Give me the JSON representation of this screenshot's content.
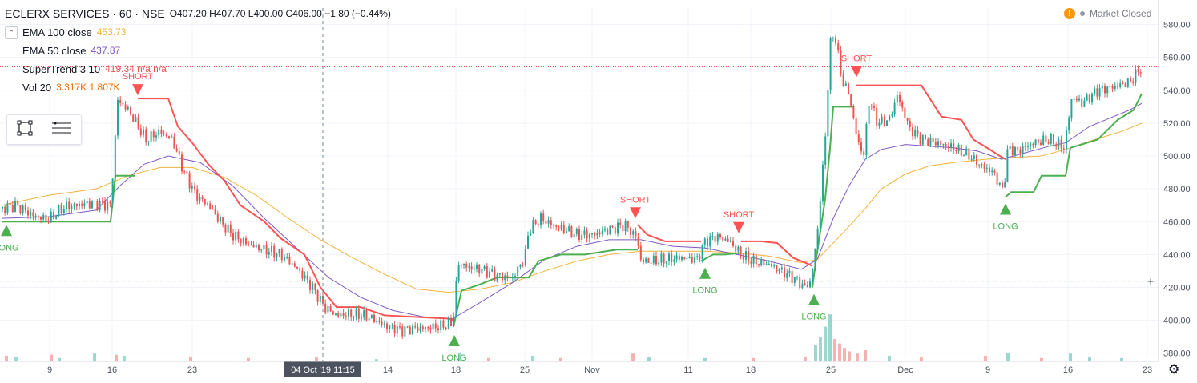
{
  "header": {
    "symbol": "ECLERX SERVICES · 60 · NSE",
    "ohlc": "O407.20  H407.70  L400.00  C406.00  −1.80 (−0.44%)"
  },
  "status": {
    "alert_icon": "!",
    "market_text": "Market Closed"
  },
  "indicators": [
    {
      "name": "EMA 100 close",
      "value": "453.73",
      "color": "#f2b33b"
    },
    {
      "name": "EMA 50 close",
      "value": "437.87",
      "color": "#7e57c2"
    },
    {
      "name": "SuperTrend 3 10",
      "value": "419.34  n/a  n/a",
      "color": "#ef5350"
    },
    {
      "name": "Vol 20",
      "value": "3.317K  1.807K",
      "color": "#ef6c00"
    }
  ],
  "colors": {
    "up": "#26a69a",
    "down": "#ef5350",
    "ema100": "#f2b33b",
    "ema50": "#7e57c2",
    "st_up": "#4caf50",
    "st_down": "#ff5252",
    "grid": "#f0f3fa",
    "axis_text": "#4c525e"
  },
  "crosshair": {
    "time_label": "04 Oct '19  11:15",
    "price_label": "423.80"
  },
  "last_price_label": "554.25",
  "chart_data": {
    "type": "candlestick",
    "ylim": [
      375,
      590
    ],
    "price_ticks": [
      "580.00",
      "560.00",
      "540.00",
      "520.00",
      "500.00",
      "480.00",
      "460.00",
      "440.00",
      "420.00",
      "400.00",
      "380.00"
    ],
    "x_ticks": [
      {
        "label": "9",
        "x": 62
      },
      {
        "label": "16",
        "x": 140
      },
      {
        "label": "23",
        "x": 240
      },
      {
        "label": "14",
        "x": 484
      },
      {
        "label": "18",
        "x": 569
      },
      {
        "label": "25",
        "x": 655
      },
      {
        "label": "Nov",
        "x": 739
      },
      {
        "label": "11",
        "x": 859
      },
      {
        "label": "18",
        "x": 937
      },
      {
        "label": "25",
        "x": 1037
      },
      {
        "label": "Dec",
        "x": 1130
      },
      {
        "label": "9",
        "x": 1233
      },
      {
        "label": "16",
        "x": 1333
      },
      {
        "label": "23",
        "x": 1432
      }
    ],
    "close_path": [
      [
        2,
        468
      ],
      [
        20,
        470
      ],
      [
        40,
        464
      ],
      [
        60,
        461
      ],
      [
        80,
        469
      ],
      [
        110,
        471
      ],
      [
        138,
        470
      ],
      [
        147,
        534
      ],
      [
        160,
        528
      ],
      [
        170,
        520
      ],
      [
        182,
        510
      ],
      [
        200,
        515
      ],
      [
        215,
        510
      ],
      [
        230,
        490
      ],
      [
        245,
        476
      ],
      [
        260,
        470
      ],
      [
        275,
        460
      ],
      [
        290,
        452
      ],
      [
        310,
        446
      ],
      [
        330,
        443
      ],
      [
        350,
        440
      ],
      [
        370,
        432
      ],
      [
        390,
        420
      ],
      [
        405,
        408
      ],
      [
        420,
        403
      ],
      [
        440,
        404
      ],
      [
        460,
        402
      ],
      [
        480,
        397
      ],
      [
        500,
        394
      ],
      [
        520,
        395
      ],
      [
        545,
        396
      ],
      [
        565,
        398
      ],
      [
        572,
        435
      ],
      [
        585,
        432
      ],
      [
        600,
        431
      ],
      [
        620,
        427
      ],
      [
        640,
        426
      ],
      [
        655,
        438
      ],
      [
        660,
        455
      ],
      [
        675,
        462
      ],
      [
        690,
        458
      ],
      [
        705,
        455
      ],
      [
        720,
        452
      ],
      [
        740,
        452
      ],
      [
        760,
        455
      ],
      [
        780,
        458
      ],
      [
        795,
        450
      ],
      [
        800,
        436
      ],
      [
        815,
        436
      ],
      [
        830,
        437
      ],
      [
        850,
        438
      ],
      [
        870,
        437
      ],
      [
        880,
        448
      ],
      [
        895,
        451
      ],
      [
        910,
        448
      ],
      [
        925,
        440
      ],
      [
        940,
        436
      ],
      [
        960,
        434
      ],
      [
        975,
        430
      ],
      [
        990,
        426
      ],
      [
        1005,
        420
      ],
      [
        1012,
        424
      ],
      [
        1020,
        452
      ],
      [
        1030,
        510
      ],
      [
        1036,
        568
      ],
      [
        1042,
        575
      ],
      [
        1050,
        548
      ],
      [
        1060,
        537
      ],
      [
        1070,
        510
      ],
      [
        1078,
        500
      ],
      [
        1085,
        535
      ],
      [
        1095,
        520
      ],
      [
        1110,
        522
      ],
      [
        1120,
        537
      ],
      [
        1135,
        517
      ],
      [
        1150,
        510
      ],
      [
        1170,
        508
      ],
      [
        1190,
        505
      ],
      [
        1210,
        500
      ],
      [
        1225,
        494
      ],
      [
        1240,
        490
      ],
      [
        1252,
        478
      ],
      [
        1258,
        505
      ],
      [
        1270,
        503
      ],
      [
        1290,
        508
      ],
      [
        1310,
        510
      ],
      [
        1328,
        505
      ],
      [
        1338,
        536
      ],
      [
        1350,
        532
      ],
      [
        1370,
        540
      ],
      [
        1390,
        542
      ],
      [
        1410,
        545
      ],
      [
        1425,
        554
      ]
    ],
    "ema50": [
      [
        2,
        462
      ],
      [
        60,
        463
      ],
      [
        120,
        467
      ],
      [
        150,
        482
      ],
      [
        180,
        495
      ],
      [
        210,
        500
      ],
      [
        250,
        496
      ],
      [
        290,
        482
      ],
      [
        330,
        462
      ],
      [
        370,
        444
      ],
      [
        410,
        426
      ],
      [
        450,
        414
      ],
      [
        490,
        406
      ],
      [
        530,
        402
      ],
      [
        565,
        401
      ],
      [
        600,
        411
      ],
      [
        640,
        423
      ],
      [
        680,
        437
      ],
      [
        720,
        445
      ],
      [
        760,
        449
      ],
      [
        800,
        449
      ],
      [
        840,
        445
      ],
      [
        880,
        444
      ],
      [
        920,
        440
      ],
      [
        960,
        436
      ],
      [
        1000,
        431
      ],
      [
        1020,
        437
      ],
      [
        1040,
        462
      ],
      [
        1060,
        482
      ],
      [
        1080,
        498
      ],
      [
        1100,
        504
      ],
      [
        1130,
        507
      ],
      [
        1160,
        506
      ],
      [
        1190,
        505
      ],
      [
        1220,
        503
      ],
      [
        1250,
        498
      ],
      [
        1280,
        502
      ],
      [
        1310,
        506
      ],
      [
        1330,
        508
      ],
      [
        1360,
        518
      ],
      [
        1390,
        524
      ],
      [
        1410,
        528
      ],
      [
        1425,
        532
      ]
    ],
    "ema100": [
      [
        2,
        470
      ],
      [
        60,
        476
      ],
      [
        120,
        480
      ],
      [
        160,
        488
      ],
      [
        200,
        493
      ],
      [
        240,
        493
      ],
      [
        280,
        487
      ],
      [
        320,
        476
      ],
      [
        360,
        462
      ],
      [
        400,
        449
      ],
      [
        440,
        438
      ],
      [
        480,
        428
      ],
      [
        520,
        419
      ],
      [
        560,
        417
      ],
      [
        600,
        419
      ],
      [
        640,
        423
      ],
      [
        680,
        430
      ],
      [
        720,
        436
      ],
      [
        760,
        440
      ],
      [
        800,
        442
      ],
      [
        840,
        442
      ],
      [
        880,
        442
      ],
      [
        920,
        441
      ],
      [
        960,
        439
      ],
      [
        1000,
        435
      ],
      [
        1020,
        437
      ],
      [
        1050,
        452
      ],
      [
        1080,
        468
      ],
      [
        1100,
        480
      ],
      [
        1130,
        489
      ],
      [
        1160,
        494
      ],
      [
        1190,
        496
      ],
      [
        1230,
        498
      ],
      [
        1260,
        499
      ],
      [
        1300,
        500
      ],
      [
        1330,
        504
      ],
      [
        1360,
        509
      ],
      [
        1400,
        515
      ],
      [
        1425,
        520
      ]
    ],
    "st_up_segments": [
      [
        [
          2,
          460
        ],
        [
          138,
          460
        ],
        [
          144,
          488
        ],
        [
          168,
          488
        ]
      ],
      [
        [
          566,
          396
        ],
        [
          576,
          418
        ],
        [
          600,
          422
        ],
        [
          620,
          426
        ],
        [
          660,
          426
        ],
        [
          672,
          436
        ],
        [
          700,
          440
        ],
        [
          730,
          440
        ],
        [
          770,
          443
        ],
        [
          796,
          443
        ]
      ],
      [
        [
          875,
          436
        ],
        [
          890,
          440
        ],
        [
          905,
          440
        ],
        [
          925,
          441
        ]
      ],
      [
        [
          1014,
          420
        ],
        [
          1018,
          435
        ],
        [
          1030,
          474
        ],
        [
          1036,
          505
        ],
        [
          1040,
          530
        ],
        [
          1065,
          530
        ]
      ],
      [
        [
          1255,
          475
        ],
        [
          1262,
          478
        ],
        [
          1290,
          478
        ],
        [
          1300,
          488
        ],
        [
          1330,
          488
        ],
        [
          1336,
          505
        ],
        [
          1370,
          510
        ],
        [
          1395,
          522
        ],
        [
          1415,
          528
        ],
        [
          1425,
          538
        ]
      ]
    ],
    "st_down_segments": [
      [
        [
          172,
          535
        ],
        [
          210,
          535
        ],
        [
          222,
          518
        ],
        [
          240,
          508
        ],
        [
          260,
          495
        ],
        [
          280,
          485
        ],
        [
          300,
          470
        ],
        [
          330,
          460
        ],
        [
          350,
          450
        ],
        [
          380,
          440
        ],
        [
          400,
          420
        ],
        [
          420,
          408
        ],
        [
          450,
          408
        ],
        [
          480,
          403
        ],
        [
          520,
          402
        ],
        [
          560,
          401
        ],
        [
          566,
          400
        ]
      ],
      [
        [
          796,
          458
        ],
        [
          808,
          452
        ],
        [
          830,
          448
        ],
        [
          875,
          448
        ]
      ],
      [
        [
          925,
          448
        ],
        [
          950,
          448
        ],
        [
          970,
          447
        ],
        [
          990,
          438
        ],
        [
          1010,
          434
        ],
        [
          1014,
          433
        ]
      ],
      [
        [
          1068,
          543
        ],
        [
          1085,
          543
        ],
        [
          1150,
          543
        ],
        [
          1175,
          524
        ],
        [
          1200,
          522
        ],
        [
          1215,
          510
        ],
        [
          1232,
          505
        ],
        [
          1248,
          500
        ],
        [
          1255,
          498
        ]
      ]
    ],
    "signals": [
      {
        "label": "LONG",
        "type": "buy",
        "x": 8,
        "y": 460
      },
      {
        "label": "SHORT",
        "type": "sell",
        "x": 172,
        "y": 535
      },
      {
        "label": "LONG",
        "type": "buy",
        "x": 567,
        "y": 393
      },
      {
        "label": "SHORT",
        "type": "sell",
        "x": 793,
        "y": 460
      },
      {
        "label": "LONG",
        "type": "buy",
        "x": 880,
        "y": 434
      },
      {
        "label": "SHORT",
        "type": "sell",
        "x": 922,
        "y": 451
      },
      {
        "label": "LONG",
        "type": "buy",
        "x": 1016,
        "y": 418
      },
      {
        "label": "SHORT",
        "type": "sell",
        "x": 1069,
        "y": 546
      },
      {
        "label": "LONG",
        "type": "buy",
        "x": 1255,
        "y": 473
      }
    ],
    "volume": [
      {
        "x": 8,
        "v": 0.5,
        "up": false
      },
      {
        "x": 20,
        "v": 0.4,
        "up": true
      },
      {
        "x": 64,
        "v": 0.6,
        "up": false
      },
      {
        "x": 74,
        "v": 0.3,
        "up": true
      },
      {
        "x": 118,
        "v": 0.7,
        "up": true
      },
      {
        "x": 145,
        "v": 0.6,
        "up": false
      },
      {
        "x": 155,
        "v": 0.5,
        "up": true
      },
      {
        "x": 238,
        "v": 0.4,
        "up": false
      },
      {
        "x": 310,
        "v": 0.3,
        "up": false
      },
      {
        "x": 395,
        "v": 0.35,
        "up": false
      },
      {
        "x": 470,
        "v": 0.2,
        "up": true
      },
      {
        "x": 574,
        "v": 0.8,
        "up": true
      },
      {
        "x": 610,
        "v": 0.3,
        "up": false
      },
      {
        "x": 665,
        "v": 0.5,
        "up": true
      },
      {
        "x": 700,
        "v": 0.3,
        "up": false
      },
      {
        "x": 790,
        "v": 0.7,
        "up": false
      },
      {
        "x": 810,
        "v": 0.4,
        "up": true
      },
      {
        "x": 880,
        "v": 0.3,
        "up": true
      },
      {
        "x": 940,
        "v": 0.3,
        "up": false
      },
      {
        "x": 1005,
        "v": 0.4,
        "up": false
      },
      {
        "x": 1018,
        "v": 1.5,
        "up": true
      },
      {
        "x": 1024,
        "v": 2.2,
        "up": true
      },
      {
        "x": 1030,
        "v": 3.1,
        "up": true
      },
      {
        "x": 1036,
        "v": 4.2,
        "up": true
      },
      {
        "x": 1042,
        "v": 2.0,
        "up": false
      },
      {
        "x": 1048,
        "v": 1.6,
        "up": false
      },
      {
        "x": 1054,
        "v": 1.2,
        "up": false
      },
      {
        "x": 1060,
        "v": 0.9,
        "up": false
      },
      {
        "x": 1070,
        "v": 0.7,
        "up": false
      },
      {
        "x": 1080,
        "v": 1.0,
        "up": false
      },
      {
        "x": 1110,
        "v": 0.5,
        "up": true
      },
      {
        "x": 1150,
        "v": 0.4,
        "up": false
      },
      {
        "x": 1230,
        "v": 0.5,
        "up": false
      },
      {
        "x": 1258,
        "v": 0.8,
        "up": true
      },
      {
        "x": 1300,
        "v": 0.3,
        "up": false
      },
      {
        "x": 1336,
        "v": 0.7,
        "up": true
      },
      {
        "x": 1360,
        "v": 0.4,
        "up": true
      },
      {
        "x": 1400,
        "v": 0.3,
        "up": true
      }
    ],
    "crosshair_price": 423.8,
    "last_price": 554.25
  }
}
